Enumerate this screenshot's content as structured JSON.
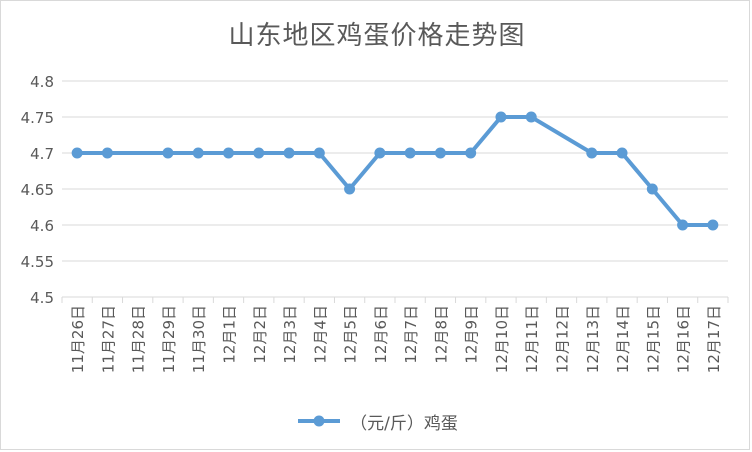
{
  "chart_data": {
    "type": "line",
    "title": "山东地区鸡蛋价格走势图",
    "categories": [
      "11月26日",
      "11月27日",
      "11月28日",
      "11月29日",
      "11月30日",
      "12月1日",
      "12月2日",
      "12月3日",
      "12月4日",
      "12月5日",
      "12月6日",
      "12月7日",
      "12月8日",
      "12月9日",
      "12月10日",
      "12月11日",
      "12月12日",
      "12月13日",
      "12月14日",
      "12月15日",
      "12月16日",
      "12月17日"
    ],
    "series": [
      {
        "name": "（元/斤）鸡蛋",
        "values": [
          4.7,
          4.7,
          null,
          4.7,
          4.7,
          4.7,
          4.7,
          4.7,
          4.7,
          4.65,
          4.7,
          4.7,
          4.7,
          4.7,
          4.75,
          4.75,
          null,
          4.7,
          4.7,
          4.65,
          4.6,
          4.6
        ]
      }
    ],
    "ylim": [
      4.5,
      4.8
    ],
    "yticks": [
      "4.5",
      "4.55",
      "4.6",
      "4.65",
      "4.7",
      "4.75",
      "4.8"
    ],
    "grid": true,
    "legend_position": "bottom",
    "colors": {
      "line": "#5b9bd5",
      "grid": "#d9d9d9",
      "text": "#595959"
    }
  }
}
